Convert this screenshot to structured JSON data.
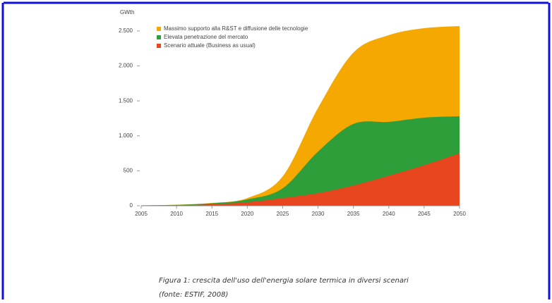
{
  "chart_data": {
    "type": "area",
    "y_label": "GWth",
    "x": [
      2005,
      2010,
      2015,
      2020,
      2025,
      2030,
      2035,
      2040,
      2045,
      2050
    ],
    "series": [
      {
        "name": "Massimo supporto alla R&ST e diffusione delle tecnologie",
        "color": "#f5a800",
        "values": [
          5,
          15,
          40,
          110,
          420,
          1400,
          2190,
          2440,
          2540,
          2570
        ]
      },
      {
        "name": "Elevata penetrazione del mercato",
        "color": "#2e9e3a",
        "values": [
          5,
          12,
          35,
          90,
          250,
          775,
          1170,
          1200,
          1260,
          1280
        ]
      },
      {
        "name": "Scenario attuale (Business as usual)",
        "color": "#e8461e",
        "values": [
          3,
          8,
          20,
          50,
          110,
          180,
          290,
          430,
          580,
          750
        ]
      }
    ],
    "xlim": [
      2005,
      2050
    ],
    "xticks": [
      2005,
      2010,
      2015,
      2020,
      2025,
      2030,
      2035,
      2040,
      2045,
      2050
    ],
    "ylim": [
      0,
      2600
    ],
    "yticks": [
      0,
      500,
      {
        "value": 1000,
        "label": "1.000"
      },
      {
        "value": 1500,
        "label": "1.500"
      },
      {
        "value": 2000,
        "label": "2.000"
      },
      {
        "value": 2500,
        "label": "2.500"
      }
    ],
    "caption": [
      "Figura 1: crescita dell'uso dell'energia solare termica in diversi scenari",
      "(fonte: ESTIF, 2008)"
    ]
  }
}
